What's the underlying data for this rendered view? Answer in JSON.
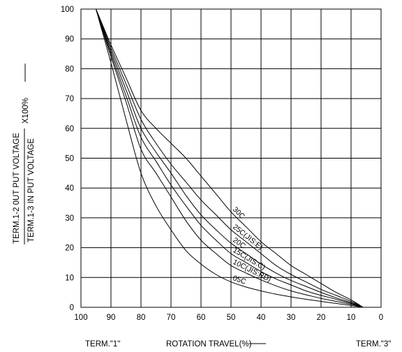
{
  "chart_data": {
    "type": "line",
    "xlabel": "ROTATION TRAVEL(%)",
    "ylabel_numerator": "TERM.1-2 0UT PUT VOLTAGE",
    "ylabel_denominator": "TERM.1-3 IN PUT VOLTAGE",
    "ylabel_multiplier": "X100%",
    "xlim": [
      100,
      0
    ],
    "ylim": [
      0,
      100
    ],
    "x_reversed": true,
    "grid": true,
    "legend": "none",
    "x_ticks": [
      100,
      90,
      80,
      70,
      60,
      50,
      40,
      30,
      20,
      10,
      0
    ],
    "y_ticks": [
      0,
      10,
      20,
      30,
      40,
      50,
      60,
      70,
      80,
      90,
      100
    ],
    "x_end_labels": {
      "left": "TERM.\"1\"",
      "right": "TERM.\"3\""
    },
    "series": [
      {
        "name": "30C",
        "x": [
          95,
          90,
          85,
          80,
          75,
          70,
          65,
          60,
          55,
          50,
          45,
          40,
          35,
          30,
          25,
          20,
          15,
          10,
          6
        ],
        "y": [
          100,
          88,
          77,
          66,
          60,
          55,
          50,
          44,
          38,
          32,
          27,
          22,
          18,
          14,
          11,
          8,
          5,
          2.5,
          0
        ]
      },
      {
        "name": "25C(JIS:E)",
        "x": [
          95,
          90,
          85,
          80,
          75,
          70,
          65,
          60,
          55,
          50,
          45,
          40,
          35,
          30,
          25,
          20,
          15,
          10,
          6
        ],
        "y": [
          100,
          87,
          75,
          63,
          55,
          48,
          42,
          36,
          31,
          26,
          22,
          18,
          14,
          11,
          8.5,
          6,
          4,
          2,
          0
        ]
      },
      {
        "name": "20C",
        "x": [
          95,
          90,
          85,
          80,
          75,
          70,
          65,
          60,
          55,
          50,
          45,
          40,
          35,
          30,
          25,
          20,
          15,
          10,
          6
        ],
        "y": [
          100,
          86,
          73,
          60,
          52,
          45,
          37.5,
          31,
          26,
          21.5,
          18,
          14.5,
          11.5,
          9,
          7,
          5,
          3.2,
          1.6,
          0
        ]
      },
      {
        "name": "15C(JIS:C)",
        "x": [
          95,
          90,
          85,
          80,
          75,
          70,
          65,
          60,
          55,
          50,
          45,
          40,
          35,
          30,
          25,
          20,
          15,
          10,
          6
        ],
        "y": [
          100,
          85,
          71,
          57,
          49,
          41,
          34,
          27.5,
          22.5,
          18,
          15,
          12,
          9.5,
          7.5,
          5.5,
          4,
          2.7,
          1.3,
          0
        ]
      },
      {
        "name": "10C(JIS:RD)",
        "x": [
          95,
          90,
          85,
          80,
          75,
          70,
          65,
          60,
          55,
          50,
          45,
          40,
          35,
          30,
          25,
          20,
          15,
          10,
          6
        ],
        "y": [
          100,
          84,
          69,
          53,
          45,
          37,
          29,
          22.5,
          18,
          14,
          11.5,
          9.2,
          7.2,
          5.5,
          4.2,
          3,
          2,
          1,
          0
        ]
      },
      {
        "name": "05C",
        "x": [
          95,
          90,
          85,
          80,
          75,
          70,
          65,
          60,
          55,
          50,
          45,
          40,
          35,
          30,
          25,
          20,
          15,
          10,
          6
        ],
        "y": [
          100,
          82,
          63,
          45,
          34,
          26,
          19,
          14.5,
          11,
          8.5,
          6.8,
          5.5,
          4.4,
          3.5,
          2.7,
          2,
          1.3,
          0.6,
          0
        ]
      }
    ]
  }
}
